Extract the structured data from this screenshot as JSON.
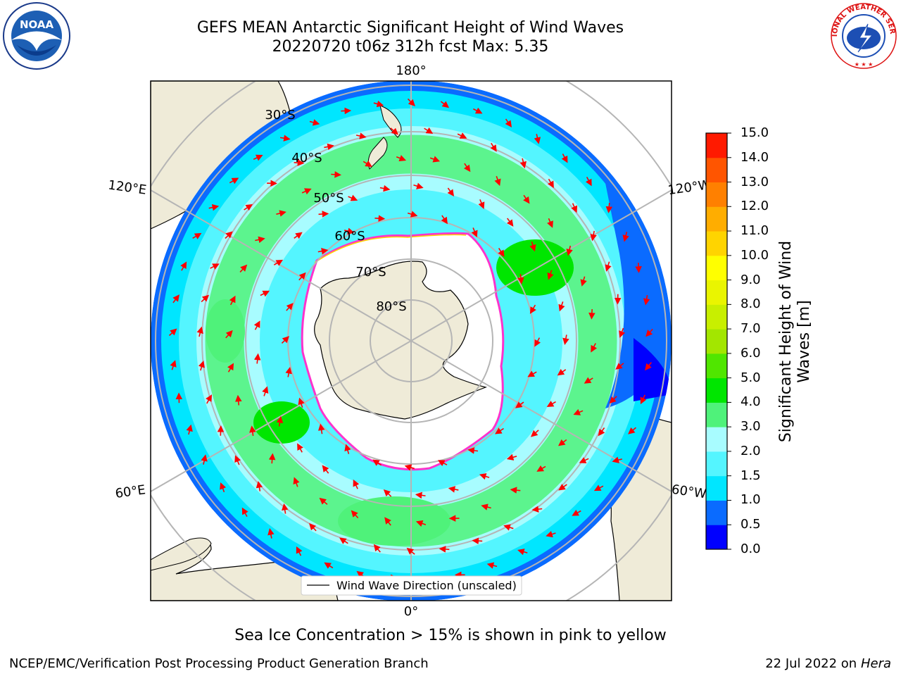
{
  "title": {
    "line1": "GEFS MEAN Antarctic Significant Height of Wind Waves",
    "line2": "20220720 t06z 312h fcst   Max: 5.35"
  },
  "map": {
    "projection": "south polar stereographic",
    "longitude_labels": [
      "180°",
      "120°E",
      "120°W",
      "60°E",
      "60°W",
      "0°"
    ],
    "latitude_labels": [
      "30°S",
      "40°S",
      "50°S",
      "60°S",
      "70°S",
      "80°S"
    ],
    "legend": "Wind Wave Direction (unscaled)",
    "arrow_color": "#ff0000",
    "land_color": "#efebd8",
    "ice_edge_colors": [
      "#ff33cc",
      "#ffd400"
    ]
  },
  "colorbar": {
    "title_line1": "Significant Height of Wind",
    "title_line2": "Waves [m]",
    "ticks": [
      "0.0",
      "0.5",
      "1.0",
      "1.5",
      "2.0",
      "3.0",
      "4.0",
      "5.0",
      "6.0",
      "7.0",
      "8.0",
      "9.0",
      "10.0",
      "11.0",
      "12.0",
      "13.0",
      "14.0",
      "15.0"
    ],
    "colors": [
      "#0000ff",
      "#0a6bff",
      "#00e6ff",
      "#54f5ff",
      "#a8fcff",
      "#4ff27a",
      "#00e600",
      "#50e600",
      "#a3e600",
      "#c8ef00",
      "#eaf500",
      "#ffff00",
      "#ffd400",
      "#ffad00",
      "#ff8000",
      "#ff5500",
      "#ff1a00"
    ]
  },
  "caption": "Sea Ice Concentration > 15% is shown in pink to yellow",
  "footer": {
    "left": "NCEP/EMC/Verification Post Processing Product Generation Branch",
    "right_prefix": "22 Jul 2022 on ",
    "right_italic": "Hera"
  },
  "logos": {
    "noaa_text": "NOAA",
    "nws_text": "NATIONAL WEATHER SERVICE"
  }
}
